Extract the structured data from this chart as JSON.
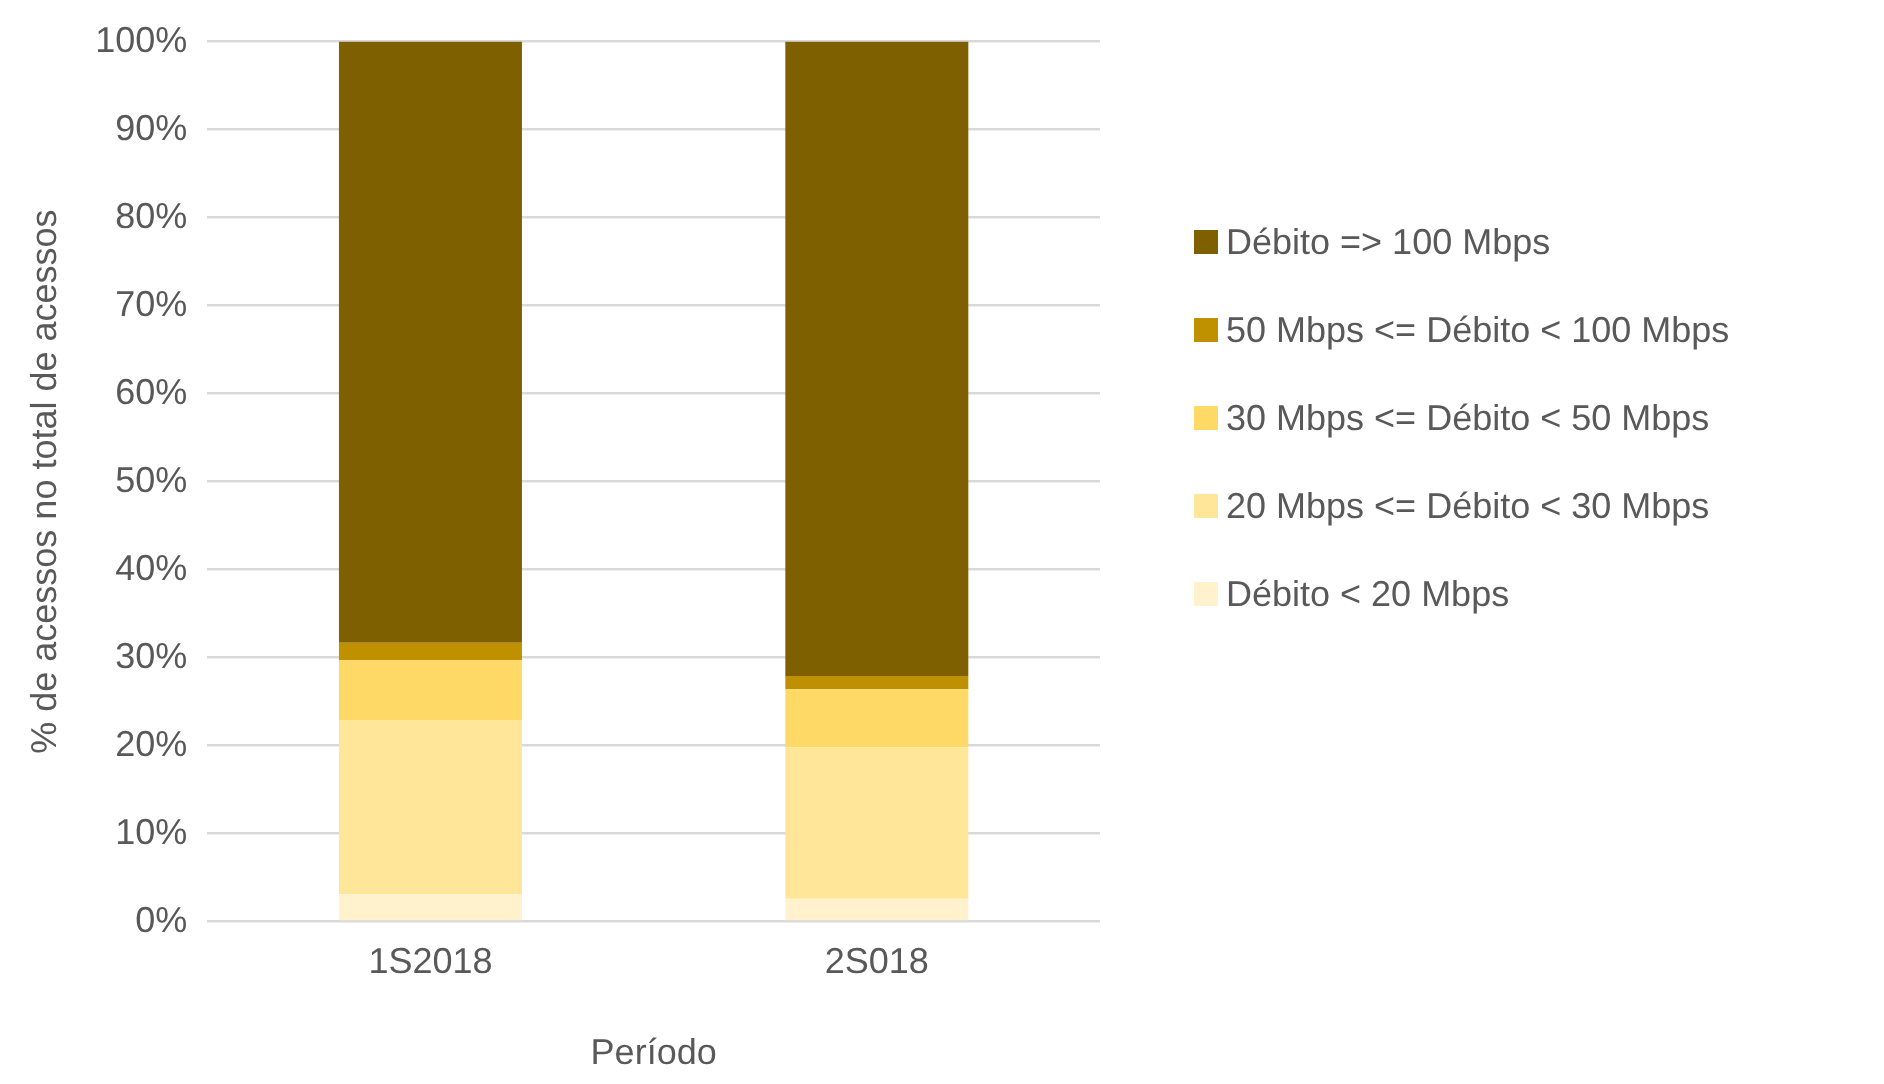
{
  "chart_data": {
    "type": "bar",
    "stacked": true,
    "xlabel": "Período",
    "ylabel": "% de acessos no total de acessos",
    "categories": [
      "1S2018",
      "2S018"
    ],
    "series": [
      {
        "name": "Débito < 20 Mbps",
        "color": "#fff2cc",
        "values": [
          3.1,
          2.6
        ]
      },
      {
        "name": "20 Mbps <= Débito < 30 Mbps",
        "color": "#ffe699",
        "values": [
          19.8,
          17.2
        ]
      },
      {
        "name": "30 Mbps <= Débito < 50 Mbps",
        "color": "#ffd966",
        "values": [
          6.8,
          6.6
        ]
      },
      {
        "name": "50 Mbps <= Débito < 100 Mbps",
        "color": "#bf9000",
        "values": [
          2.0,
          1.5
        ]
      },
      {
        "name": "Débito => 100 Mbps",
        "color": "#7f6000",
        "values": [
          68.3,
          72.1
        ]
      }
    ],
    "ylim": [
      0,
      100
    ],
    "yticks": [
      {
        "value": 0,
        "label": "0%"
      },
      {
        "value": 10,
        "label": "10%"
      },
      {
        "value": 20,
        "label": "20%"
      },
      {
        "value": 30,
        "label": "30%"
      },
      {
        "value": 40,
        "label": "40%"
      },
      {
        "value": 50,
        "label": "50%"
      },
      {
        "value": 60,
        "label": "60%"
      },
      {
        "value": 70,
        "label": "70%"
      },
      {
        "value": 80,
        "label": "80%"
      },
      {
        "value": 90,
        "label": "90%"
      },
      {
        "value": 100,
        "label": "100%"
      }
    ],
    "grid": "y",
    "legend": "right"
  }
}
